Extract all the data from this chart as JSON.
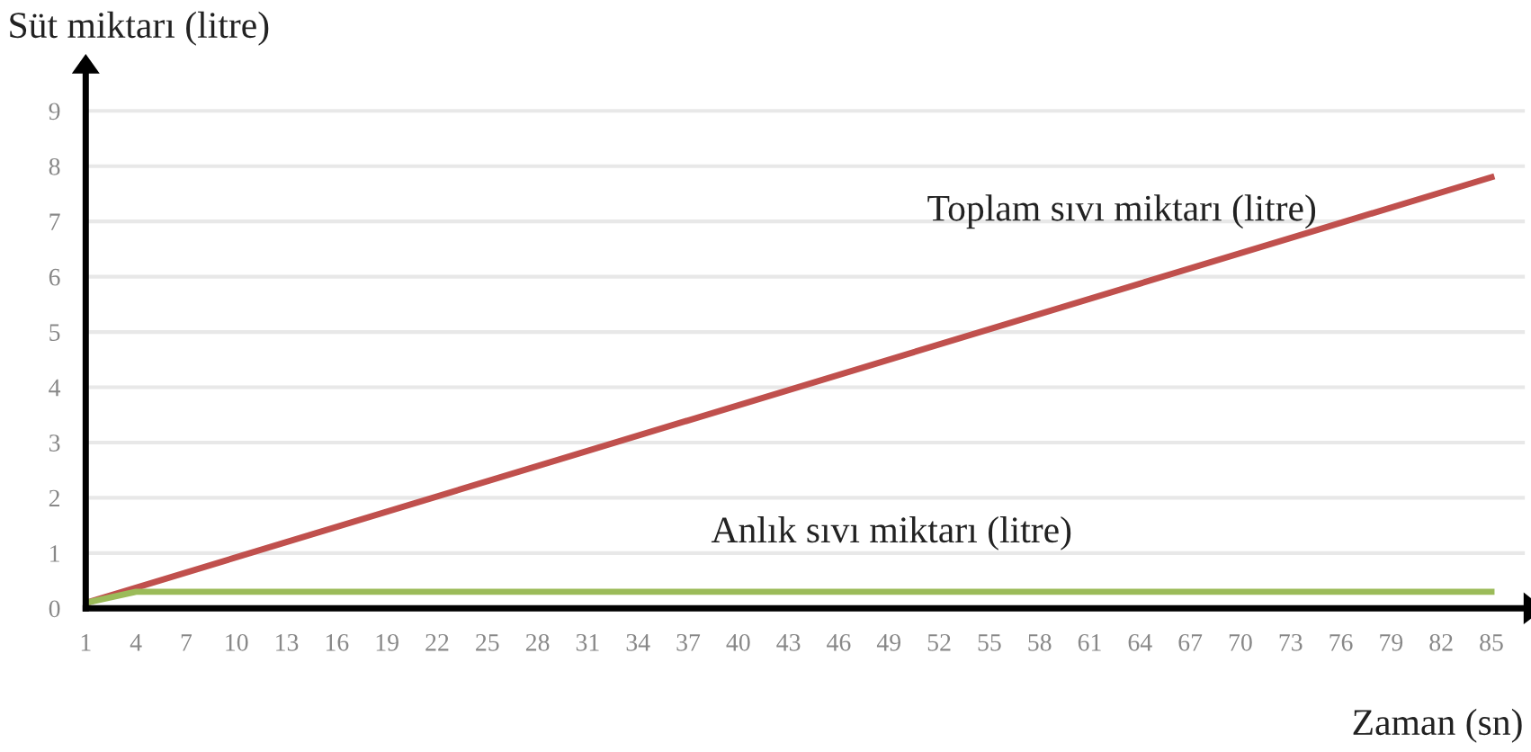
{
  "chart_data": {
    "type": "line",
    "xlabel": "Zaman (sn)",
    "ylabel": "Süt miktarı (litre)",
    "series": [
      {
        "name": "Toplam sıvı miktarı (litre)",
        "color": "#c0504d",
        "x": [
          1,
          85
        ],
        "values": [
          0.1,
          7.8
        ]
      },
      {
        "name": "Anlık sıvı miktarı (litre)",
        "color": "#9bbb59",
        "x": [
          1,
          4,
          85
        ],
        "values": [
          0.1,
          0.3,
          0.3
        ]
      }
    ],
    "xlim": [
      1,
      87
    ],
    "xticks": [
      1,
      4,
      7,
      10,
      13,
      16,
      19,
      22,
      25,
      28,
      31,
      34,
      37,
      40,
      43,
      46,
      49,
      52,
      55,
      58,
      61,
      64,
      67,
      70,
      73,
      76,
      79,
      82,
      85
    ],
    "ylim": [
      0,
      9.7
    ],
    "yticks": [
      0,
      1,
      2,
      3,
      4,
      5,
      6,
      7,
      8,
      9
    ],
    "grid": "y",
    "legend": false,
    "marker": "none",
    "line_style": "solid"
  }
}
